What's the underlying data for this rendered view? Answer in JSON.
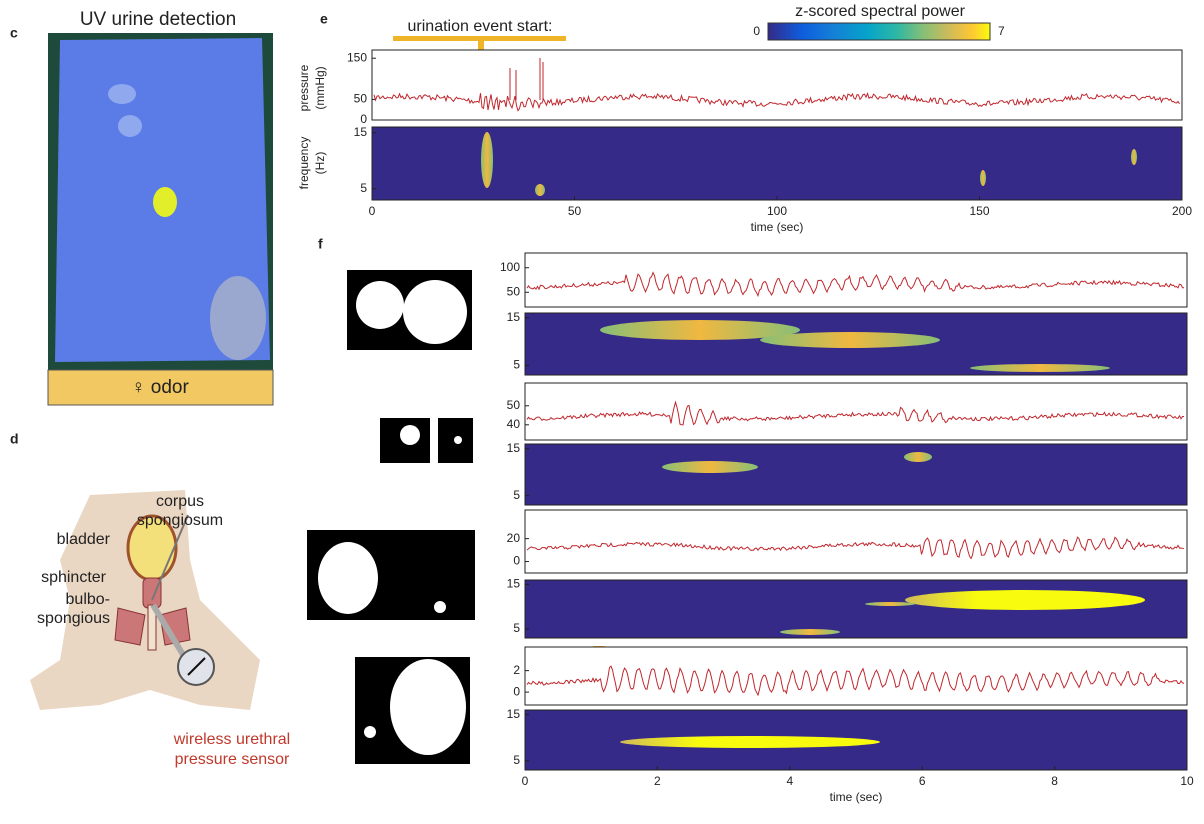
{
  "panel_c": {
    "letter": "c",
    "title": "UV urine detection",
    "label": "♀ odor"
  },
  "panel_d": {
    "letter": "d",
    "corpus_spongiosum": [
      "corpus",
      "spongiosum"
    ],
    "bladder": "bladder",
    "sphincter": "sphincter",
    "bulbospongious": [
      "bulbo-",
      "spongious"
    ],
    "sensor": [
      "wireless urethral",
      "pressure sensor"
    ]
  },
  "panel_e": {
    "letter": "e",
    "annotation": "urination event start:",
    "colorbar": {
      "title": "z-scored spectral power",
      "lim": [
        0,
        7
      ],
      "ticks": [
        0,
        7
      ]
    },
    "pressure": {
      "ylabel": [
        "pressure",
        "(mmHg)"
      ],
      "ylim": [
        0,
        170
      ],
      "yticks": [
        0,
        50,
        150
      ]
    },
    "spectrogram": {
      "ylabel": [
        "frequency",
        "(Hz)"
      ],
      "ylim": [
        3,
        16
      ],
      "yticks": [
        5,
        15
      ]
    },
    "x": {
      "xlim": [
        0,
        200
      ],
      "xticks": [
        0,
        50,
        100,
        150,
        200
      ],
      "xlabel": "time (sec)"
    }
  },
  "panel_f": {
    "letter": "f",
    "rows": [
      {
        "ylim": [
          20,
          130
        ],
        "yticks": [
          50,
          100
        ]
      },
      {
        "ylim": [
          32,
          62
        ],
        "yticks": [
          40,
          50
        ]
      },
      {
        "ylim": [
          -10,
          45
        ],
        "yticks": [
          0,
          20
        ]
      },
      {
        "ylim": [
          -1.2,
          4.2
        ],
        "yticks": [
          0,
          2
        ]
      }
    ],
    "spectrogram": {
      "ylim": [
        3,
        16
      ],
      "yticks": [
        5,
        15
      ]
    },
    "x": {
      "xlim": [
        0,
        10
      ],
      "xticks": [
        0,
        2,
        4,
        6,
        8,
        10
      ],
      "xlabel": "time (sec)"
    }
  }
}
